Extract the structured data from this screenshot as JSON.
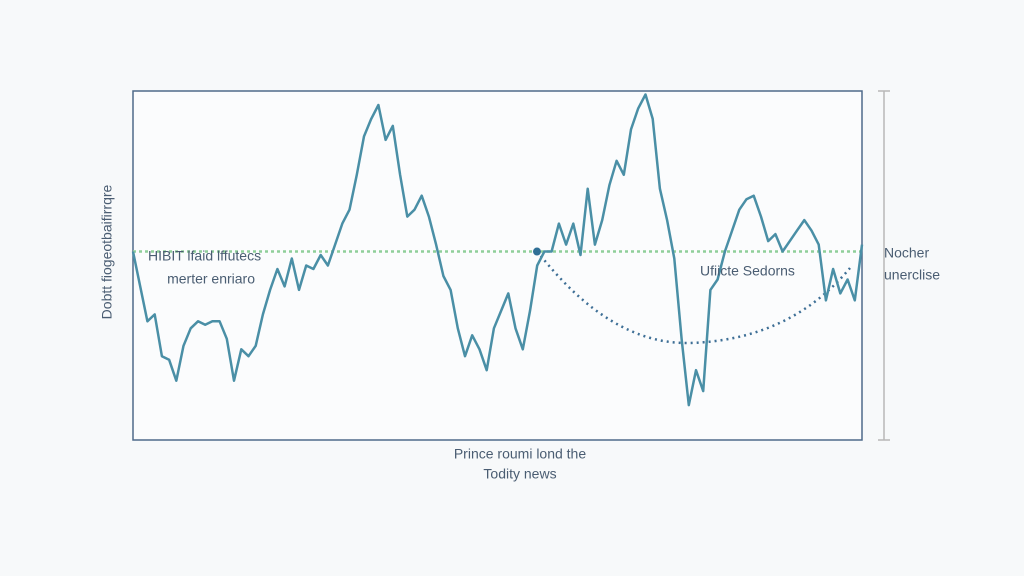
{
  "chart_data": {
    "type": "line",
    "ylabel": "Dobtt fiogeotbaifirrqre",
    "xlabel": [
      "Prince roumi lond the",
      "Todity news"
    ],
    "annotations": [
      "HIBIT lfaid lffutecs",
      "merter enriaro",
      "Ufiicte Sedorns"
    ],
    "side_labels": [
      "Nocher",
      "unerclise"
    ],
    "ylim": [
      0,
      100
    ],
    "reference_line": 54,
    "reference_color": "#8fcf9a",
    "series": [
      {
        "color": "#4a8fa6",
        "values": [
          54,
          44,
          34,
          36,
          24,
          23,
          17,
          27,
          32,
          34,
          33,
          34,
          34,
          29,
          17,
          26,
          24,
          27,
          36,
          43,
          49,
          44,
          52,
          43,
          50,
          49,
          53,
          50,
          56,
          62,
          66,
          76,
          87,
          92,
          96,
          86,
          90,
          76,
          64,
          66,
          70,
          64,
          56,
          47,
          43,
          32,
          24,
          30,
          26,
          20,
          32,
          37,
          42,
          32,
          26,
          37,
          50,
          54,
          54,
          62,
          56,
          62,
          53,
          72,
          56,
          63,
          73,
          80,
          76,
          89,
          95,
          99,
          92,
          72,
          63,
          52,
          29,
          10,
          20,
          14,
          43,
          46,
          54,
          60,
          66,
          69,
          70,
          64,
          57,
          59,
          54,
          57,
          60,
          63,
          60,
          56,
          40,
          49,
          42,
          46,
          40,
          56
        ]
      }
    ]
  }
}
